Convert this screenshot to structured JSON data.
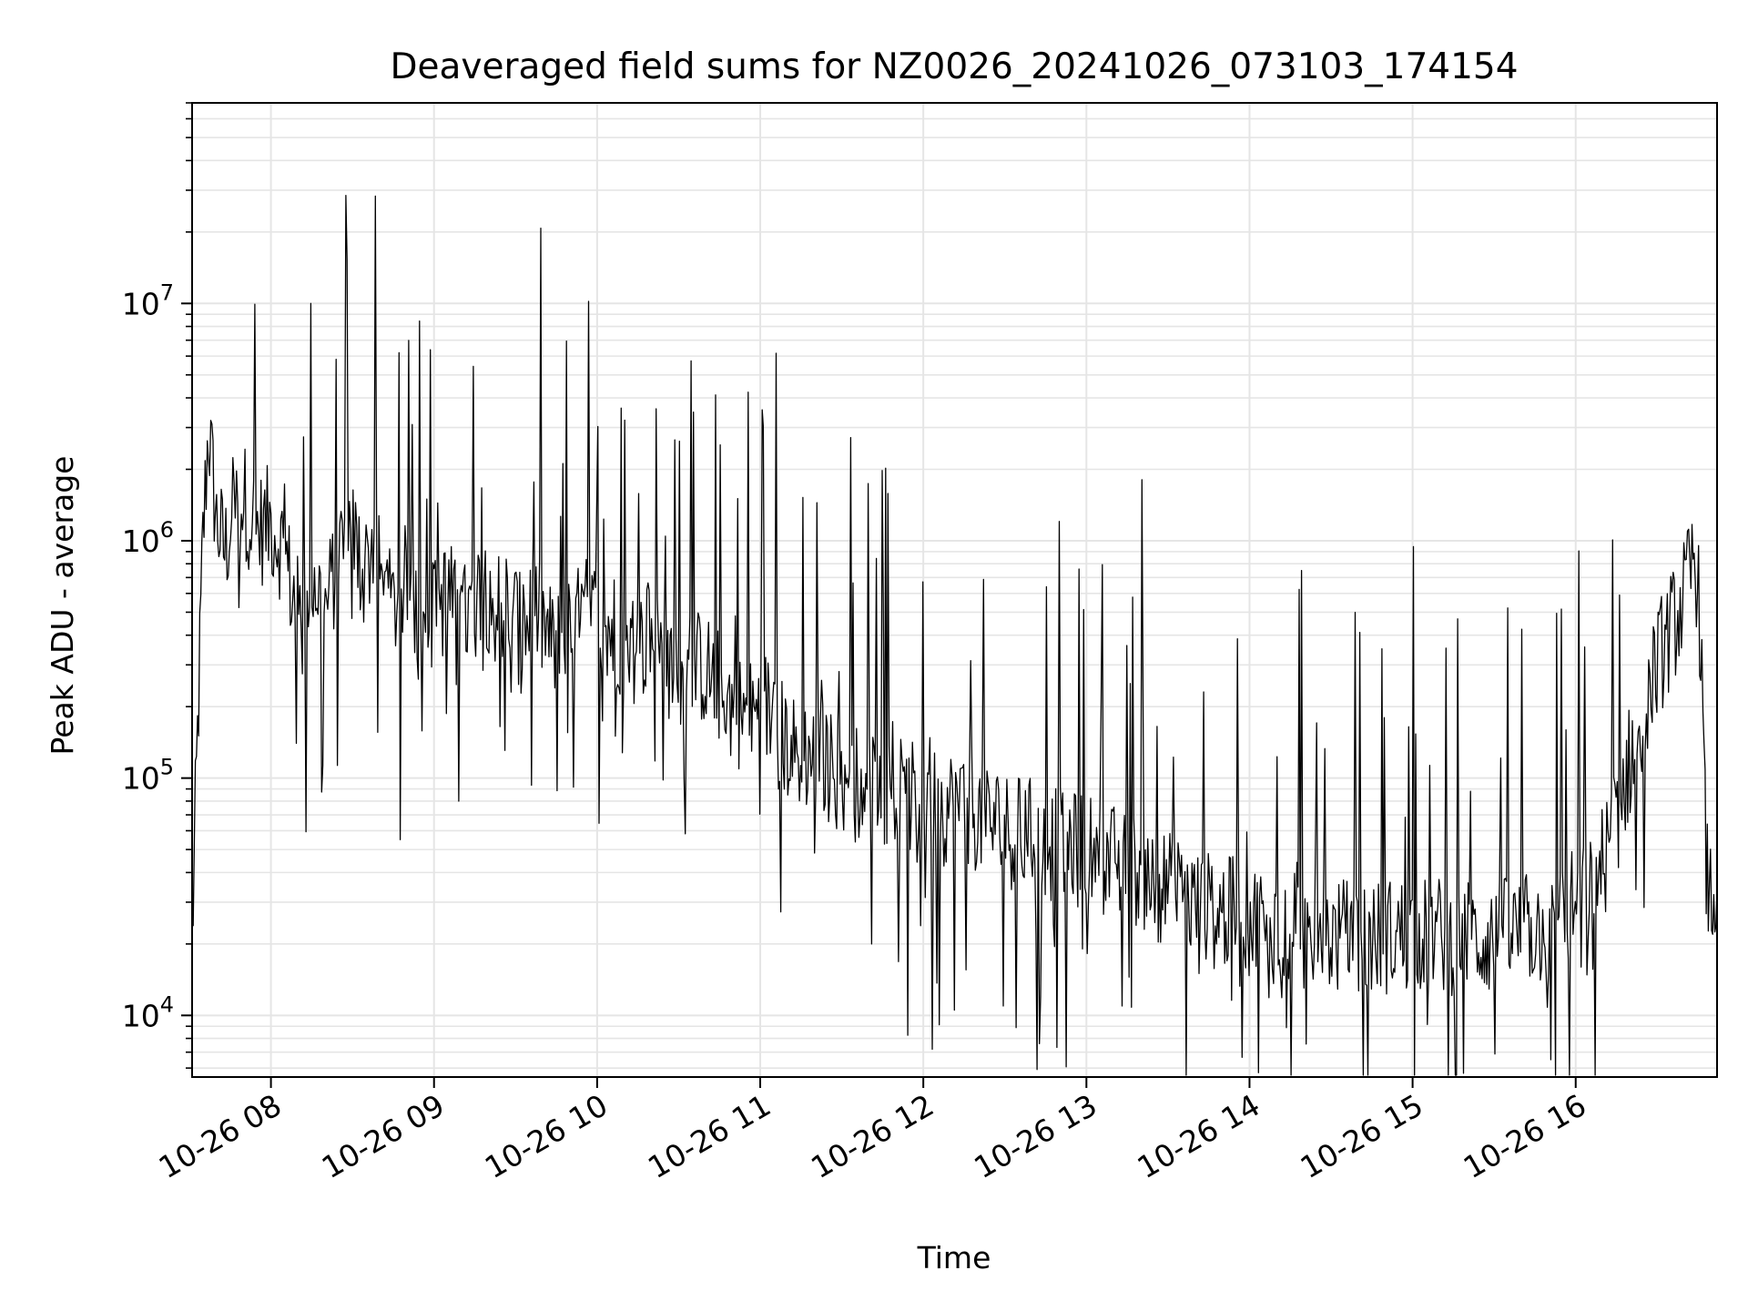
{
  "chart_data": {
    "type": "line",
    "title": "Deaveraged field sums for NZ0026_20241026_073103_174154",
    "xlabel": "Time",
    "ylabel": "Peak ADU - average",
    "yscale": "log",
    "ylim": [
      5500,
      70000000
    ],
    "xlim": [
      "2024-10-26 07:31",
      "2024-10-26 16:52"
    ],
    "grid": true,
    "grid_color": "#e5e5e5",
    "line_color": "#000000",
    "legend": "none",
    "x_ticks": [
      {
        "t": "2024-10-26 08:00",
        "label": "10-26 08"
      },
      {
        "t": "2024-10-26 09:00",
        "label": "10-26 09"
      },
      {
        "t": "2024-10-26 10:00",
        "label": "10-26 10"
      },
      {
        "t": "2024-10-26 11:00",
        "label": "10-26 11"
      },
      {
        "t": "2024-10-26 12:00",
        "label": "10-26 12"
      },
      {
        "t": "2024-10-26 13:00",
        "label": "10-26 13"
      },
      {
        "t": "2024-10-26 14:00",
        "label": "10-26 14"
      },
      {
        "t": "2024-10-26 15:00",
        "label": "10-26 15"
      },
      {
        "t": "2024-10-26 16:00",
        "label": "10-26 16"
      }
    ],
    "y_ticks": [
      {
        "value": 10000,
        "base": "10",
        "exp": "4"
      },
      {
        "value": 100000,
        "base": "10",
        "exp": "5"
      },
      {
        "value": 1000000,
        "base": "10",
        "exp": "6"
      },
      {
        "value": 10000000,
        "base": "10",
        "exp": "7"
      }
    ],
    "series": [
      {
        "x": [
          "2024-10-26 07:31",
          "2024-10-26 07:33",
          "2024-10-26 07:35",
          "2024-10-26 07:37",
          "2024-10-26 07:40",
          "2024-10-26 07:43",
          "2024-10-26 07:46",
          "2024-10-26 07:50",
          "2024-10-26 07:55",
          "2024-10-26 08:00",
          "2024-10-26 08:05",
          "2024-10-26 08:08",
          "2024-10-26 08:12",
          "2024-10-26 08:16",
          "2024-10-26 08:20",
          "2024-10-26 08:24",
          "2024-10-26 08:28",
          "2024-10-26 08:32",
          "2024-10-26 08:35",
          "2024-10-26 08:38",
          "2024-10-26 08:41",
          "2024-10-26 08:45",
          "2024-10-26 08:48",
          "2024-10-26 08:52",
          "2024-10-26 08:56",
          "2024-10-26 09:00",
          "2024-10-26 09:05",
          "2024-10-26 09:10",
          "2024-10-26 09:14",
          "2024-10-26 09:18",
          "2024-10-26 09:22",
          "2024-10-26 09:27",
          "2024-10-26 09:32",
          "2024-10-26 09:38",
          "2024-10-26 09:44",
          "2024-10-26 09:50",
          "2024-10-26 09:56",
          "2024-10-26 10:02",
          "2024-10-26 10:08",
          "2024-10-26 10:14",
          "2024-10-26 10:20",
          "2024-10-26 10:26",
          "2024-10-26 10:32",
          "2024-10-26 10:38",
          "2024-10-26 10:44",
          "2024-10-26 10:50",
          "2024-10-26 10:56",
          "2024-10-26 11:02",
          "2024-10-26 11:08",
          "2024-10-26 11:14",
          "2024-10-26 11:20",
          "2024-10-26 11:26",
          "2024-10-26 11:32",
          "2024-10-26 11:38",
          "2024-10-26 11:44",
          "2024-10-26 11:50",
          "2024-10-26 11:56",
          "2024-10-26 12:02",
          "2024-10-26 12:08",
          "2024-10-26 12:14",
          "2024-10-26 12:20",
          "2024-10-26 12:26",
          "2024-10-26 12:32",
          "2024-10-26 12:38",
          "2024-10-26 12:44",
          "2024-10-26 12:50",
          "2024-10-26 12:56",
          "2024-10-26 13:02",
          "2024-10-26 13:08",
          "2024-10-26 13:14",
          "2024-10-26 13:20",
          "2024-10-26 13:26",
          "2024-10-26 13:32",
          "2024-10-26 13:38",
          "2024-10-26 13:44",
          "2024-10-26 13:50",
          "2024-10-26 13:56",
          "2024-10-26 14:02",
          "2024-10-26 14:08",
          "2024-10-26 14:14",
          "2024-10-26 14:20",
          "2024-10-26 14:26",
          "2024-10-26 14:32",
          "2024-10-26 14:38",
          "2024-10-26 14:44",
          "2024-10-26 14:50",
          "2024-10-26 14:56",
          "2024-10-26 15:02",
          "2024-10-26 15:08",
          "2024-10-26 15:14",
          "2024-10-26 15:20",
          "2024-10-26 15:26",
          "2024-10-26 15:32",
          "2024-10-26 15:38",
          "2024-10-26 15:44",
          "2024-10-26 15:50",
          "2024-10-26 15:56",
          "2024-10-26 16:02",
          "2024-10-26 16:08",
          "2024-10-26 16:14",
          "2024-10-26 16:20",
          "2024-10-26 16:26",
          "2024-10-26 16:32",
          "2024-10-26 16:38",
          "2024-10-26 16:42",
          "2024-10-26 16:44",
          "2024-10-26 16:46",
          "2024-10-26 16:48",
          "2024-10-26 16:50",
          "2024-10-26 16:52"
        ],
        "y": [
          20000,
          150000,
          1000000,
          3000000,
          1200000,
          900000,
          1300000,
          1500000,
          1100000,
          1200000,
          900000,
          600000,
          400000,
          700000,
          500000,
          800000,
          1200000,
          900000,
          700000,
          1100000,
          600000,
          500000,
          700000,
          600000,
          400000,
          500000,
          600000,
          450000,
          500000,
          700000,
          500000,
          600000,
          400000,
          500000,
          350000,
          400000,
          500000,
          450000,
          400000,
          350000,
          400000,
          300000,
          250000,
          300000,
          250000,
          200000,
          180000,
          200000,
          150000,
          120000,
          130000,
          110000,
          100000,
          90000,
          95000,
          85000,
          80000,
          85000,
          75000,
          80000,
          70000,
          65000,
          60000,
          58000,
          55000,
          52000,
          50000,
          48000,
          45000,
          42000,
          40000,
          36000,
          33000,
          30000,
          28000,
          27000,
          26000,
          25000,
          24000,
          23000,
          22500,
          22000,
          21500,
          21000,
          21000,
          21500,
          22000,
          22000,
          22000,
          21500,
          21000,
          21000,
          21500,
          22000,
          23000,
          24000,
          27000,
          30000,
          38000,
          60000,
          120000,
          220000,
          350000,
          500000,
          700000,
          900000,
          400000,
          40000,
          30000,
          35000
        ]
      }
    ]
  }
}
